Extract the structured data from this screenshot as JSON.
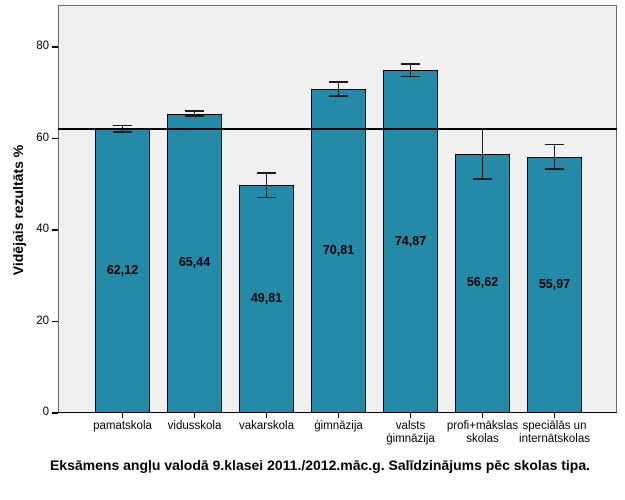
{
  "chart_data": {
    "type": "bar",
    "title": "Eksāmens angļu valodā 9.klasei 2011./2012.māc.g. Salīdzinājums pēc skolas tipa.",
    "xlabel": "",
    "ylabel": "Vidējais rezultāts %",
    "categories": [
      "pamatskola",
      "vidusskola",
      "vakarskola",
      "ģimnāzija",
      "valsts\nģimnāzija",
      "profi+mākslas\nskolas",
      "speciālās un\ninternātskolas"
    ],
    "values": [
      62.12,
      65.44,
      49.81,
      70.81,
      74.87,
      56.62,
      55.97
    ],
    "value_labels": [
      "62,12",
      "65,44",
      "49,81",
      "70,81",
      "74,87",
      "56,62",
      "55,97"
    ],
    "error_low": [
      61.4,
      64.9,
      47.1,
      69.3,
      73.5,
      51.2,
      53.3
    ],
    "error_high": [
      62.8,
      66.0,
      52.5,
      72.3,
      76.3,
      62.0,
      58.7
    ],
    "yticks": [
      0,
      20,
      40,
      60,
      80
    ],
    "ylim": [
      0,
      89
    ],
    "reference_line": 62.12,
    "grid": false,
    "legend_position": "none",
    "colors": {
      "bar_fill": "#2589a8",
      "bar_border": "#000000",
      "plot_bg": "#f0f0f0",
      "figure_bg": "#ffffff",
      "error_bar": "#1a1a1a",
      "reference_line": "#000000"
    }
  }
}
